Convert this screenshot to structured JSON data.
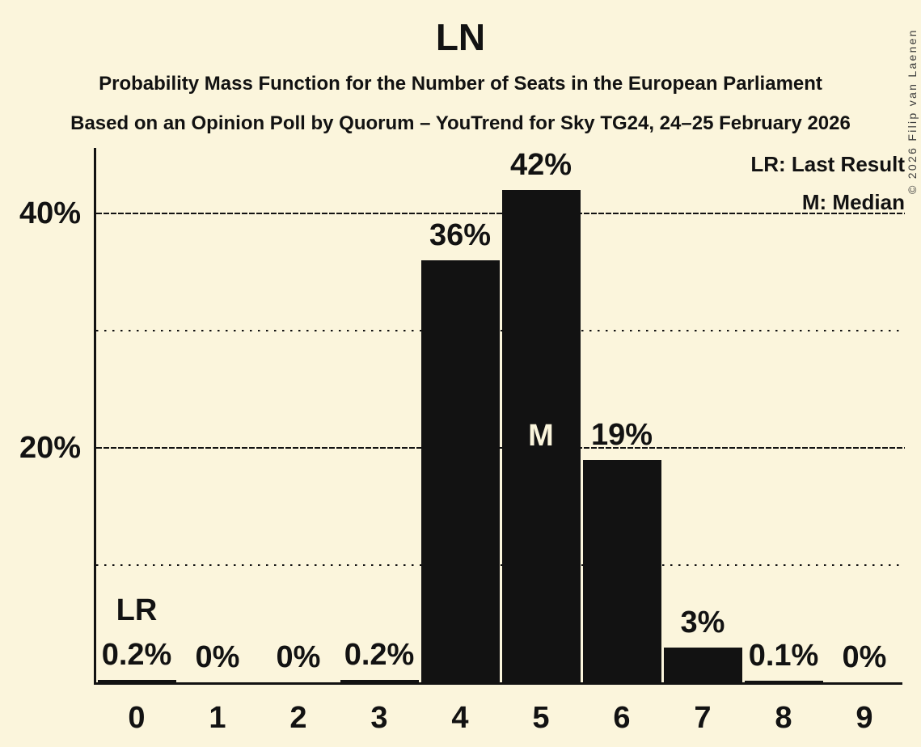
{
  "header": {
    "title": "LN",
    "subtitle1": "Probability Mass Function for the Number of Seats in the European Parliament",
    "subtitle2": "Based on an Opinion Poll by Quorum – YouTrend for Sky TG24, 24–25 February 2026"
  },
  "copyright": "© 2026 Filip van Laenen",
  "colors": {
    "background": "#FBF5DC",
    "bar": "#121212",
    "text": "#121212",
    "median_label_inside_bar": "#FBF5DC",
    "copyright_text": "#3d3d3d"
  },
  "chart_data": {
    "type": "bar",
    "title": "LN",
    "categories": [
      "0",
      "1",
      "2",
      "3",
      "4",
      "5",
      "6",
      "7",
      "8",
      "9"
    ],
    "values": [
      0.2,
      0,
      0,
      0.2,
      36,
      42,
      19,
      3,
      0.1,
      0
    ],
    "bar_labels": [
      "0.2%",
      "0%",
      "0%",
      "0.2%",
      "36%",
      "42%",
      "19%",
      "3%",
      "0.1%",
      "0%"
    ],
    "xlabel": "",
    "ylabel": "",
    "ylim": [
      0,
      45.8
    ],
    "yticks": [
      {
        "value": 40,
        "label": "40%"
      },
      {
        "value": 20,
        "label": "20%"
      }
    ],
    "major_gridlines": [
      40,
      20
    ],
    "minor_gridlines": [
      30,
      10
    ],
    "grid": "horizontal; labeled lines dashed, unlabeled lines dotted",
    "legend_position": "top-right",
    "legend": [
      "LR: Last Result",
      "M: Median"
    ],
    "annotations": [
      {
        "text": "LR",
        "category": "0",
        "position": "above-value-label"
      },
      {
        "text": "M",
        "category": "5",
        "position": "inside-bar"
      }
    ]
  }
}
